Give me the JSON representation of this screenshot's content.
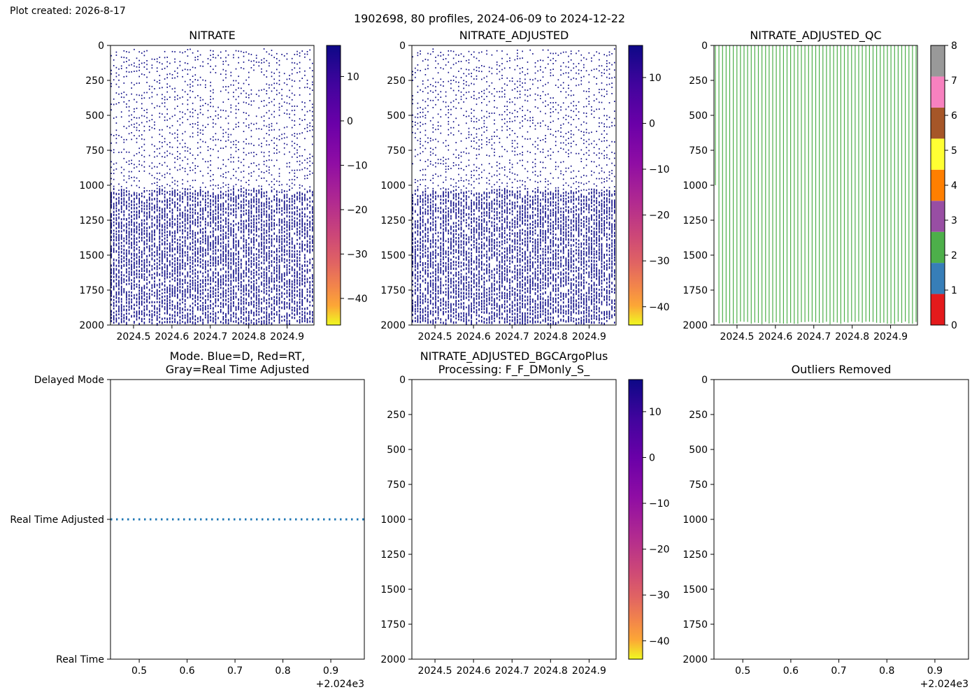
{
  "figure": {
    "created_label": "Plot created: 2026-8-17",
    "suptitle": "1902698, 80 profiles, 2024-06-09 to 2024-12-22"
  },
  "colors": {
    "data_dots": "#0c0a86",
    "qc_green": "#4daf4a",
    "mode_dots": "#1f77b4",
    "plasma_top": "#0d0887",
    "plasma_bottom": "#f0f921",
    "qc_palette": [
      "#e41a1c",
      "#377eb8",
      "#4daf4a",
      "#984ea3",
      "#ff7f00",
      "#ffff33",
      "#a65628",
      "#f781bf",
      "#999999"
    ]
  },
  "chart_data": [
    {
      "type": "scatter",
      "title": "NITRATE",
      "xlabel": "",
      "ylabel": "",
      "xlim": [
        2024.44,
        2024.97
      ],
      "ylim": [
        2000,
        0
      ],
      "xticks": [
        "2024.5",
        "2024.6",
        "2024.7",
        "2024.8",
        "2024.9"
      ],
      "yticks": [
        "0",
        "250",
        "500",
        "750",
        "1000",
        "1250",
        "1500",
        "1750",
        "2000"
      ],
      "profiles": 80,
      "colorbar": {
        "cmap": "plasma_r",
        "range": [
          -46,
          17
        ],
        "ticks": [
          "10",
          "0",
          "−10",
          "−20",
          "−30",
          "−40"
        ]
      }
    },
    {
      "type": "scatter",
      "title": "NITRATE_ADJUSTED",
      "xlabel": "",
      "ylabel": "",
      "xlim": [
        2024.44,
        2024.97
      ],
      "ylim": [
        2000,
        0
      ],
      "xticks": [
        "2024.5",
        "2024.6",
        "2024.7",
        "2024.8",
        "2024.9"
      ],
      "yticks": [
        "0",
        "250",
        "500",
        "750",
        "1000",
        "1250",
        "1500",
        "1750",
        "2000"
      ],
      "profiles": 80,
      "colorbar": {
        "cmap": "plasma_r",
        "range": [
          -44,
          17
        ],
        "ticks": [
          "10",
          "0",
          "−10",
          "−20",
          "−30",
          "−40"
        ]
      }
    },
    {
      "type": "scatter",
      "title": "NITRATE_ADJUSTED_QC",
      "xlabel": "",
      "ylabel": "",
      "xlim": [
        2024.44,
        2024.97
      ],
      "ylim": [
        2000,
        0
      ],
      "xticks": [
        "2024.5",
        "2024.6",
        "2024.7",
        "2024.8",
        "2024.9"
      ],
      "yticks": [
        "0",
        "250",
        "500",
        "750",
        "1000",
        "1250",
        "1500",
        "1750",
        "2000"
      ],
      "qc_value_all": 2,
      "colorbar": {
        "cmap": "qc",
        "range": [
          0,
          8
        ],
        "ticks": [
          "0",
          "1",
          "2",
          "3",
          "4",
          "5",
          "6",
          "7",
          "8"
        ]
      }
    },
    {
      "type": "scatter",
      "title_lines": [
        "Mode. Blue=D, Red=RT,",
        "Gray=Real Time Adjusted"
      ],
      "xlabel": "",
      "ylabel": "",
      "xlim": [
        2024.44,
        2024.97
      ],
      "xticks": [
        "0.5",
        "0.6",
        "0.7",
        "0.8",
        "0.9"
      ],
      "x_offset_label": "+2.024e3",
      "ycategories": [
        "Real Time",
        "Real Time Adjusted",
        "Delayed Mode"
      ],
      "mode_value": "Real Time Adjusted",
      "x_start": 2024.44,
      "x_end": 2024.97
    },
    {
      "type": "scatter",
      "title_lines": [
        "NITRATE_ADJUSTED_BGCArgoPlus",
        "Processing: F_F_DMonly_S_"
      ],
      "xlabel": "",
      "ylabel": "",
      "xlim": [
        2024.44,
        2024.97
      ],
      "ylim": [
        2000,
        0
      ],
      "xticks": [
        "2024.5",
        "2024.6",
        "2024.7",
        "2024.8",
        "2024.9"
      ],
      "yticks": [
        "0",
        "250",
        "500",
        "750",
        "1000",
        "1250",
        "1500",
        "1750",
        "2000"
      ],
      "colorbar": {
        "cmap": "plasma_r",
        "range": [
          -44,
          17
        ],
        "ticks": [
          "10",
          "0",
          "−10",
          "−20",
          "−30",
          "−40"
        ]
      }
    },
    {
      "type": "scatter",
      "title": "Outliers Removed",
      "xlabel": "",
      "ylabel": "",
      "xlim": [
        2024.44,
        2024.97
      ],
      "ylim": [
        2000,
        0
      ],
      "xticks": [
        "0.5",
        "0.6",
        "0.7",
        "0.8",
        "0.9"
      ],
      "x_offset_label": "+2.024e3",
      "yticks": [
        "0",
        "250",
        "500",
        "750",
        "1000",
        "1250",
        "1500",
        "1750",
        "2000"
      ]
    }
  ]
}
